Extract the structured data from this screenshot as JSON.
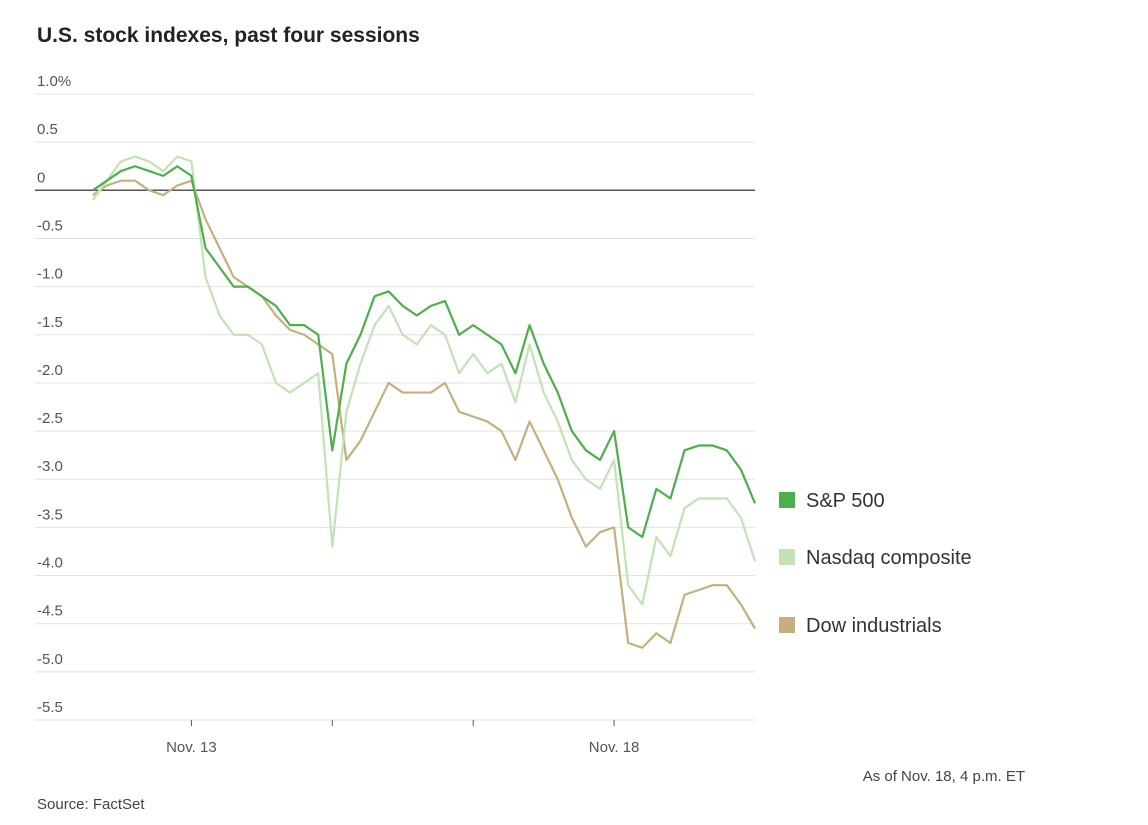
{
  "chart_data": {
    "type": "line",
    "title": "U.S. stock indexes, past four sessions",
    "source": "Source: FactSet",
    "note": "As of Nov. 18, 4 p.m. ET",
    "x": [
      0.3,
      0.4,
      0.5,
      0.6,
      0.7,
      0.8,
      0.9,
      1.0,
      1.1,
      1.2,
      1.3,
      1.4,
      1.5,
      1.6,
      1.7,
      1.8,
      1.9,
      2.0,
      2.1,
      2.2,
      2.3,
      2.4,
      2.5,
      2.6,
      2.7,
      2.8,
      2.9,
      3.0,
      3.1,
      3.2,
      3.3,
      3.4,
      3.5,
      3.6,
      3.7,
      3.8,
      3.9,
      4.0,
      4.1,
      4.2,
      4.3,
      4.4,
      4.5,
      4.6,
      4.7,
      4.8,
      4.9,
      5.0
    ],
    "xlim": [
      -0.11,
      5.0
    ],
    "xticks": [
      {
        "value": 1,
        "label": "Nov. 13"
      },
      {
        "value": 2,
        "label": null
      },
      {
        "value": 3,
        "label": null
      },
      {
        "value": 4,
        "label": "Nov. 18"
      }
    ],
    "ylim": [
      -5.5,
      1.0
    ],
    "yticks": [
      {
        "value": 1,
        "label": "1.0%"
      },
      0.5,
      0,
      -0.5,
      {
        "value": -1,
        "label": "-1.0"
      },
      -1.5,
      {
        "value": -2,
        "label": "-2.0"
      },
      -2.5,
      {
        "value": -3,
        "label": "-3.0"
      },
      -3.5,
      {
        "value": -4,
        "label": "-4.0"
      },
      -4.5,
      {
        "value": -5,
        "label": "-5.0"
      },
      -5.5
    ],
    "grid": true,
    "series": [
      {
        "name": "S&P 500",
        "color": "#4daf4a",
        "values": [
          0.0,
          0.1,
          0.2,
          0.25,
          0.2,
          0.15,
          0.25,
          0.15,
          -0.6,
          -0.8,
          -1.0,
          -1.0,
          -1.1,
          -1.2,
          -1.4,
          -1.4,
          -1.5,
          -2.7,
          -1.8,
          -1.5,
          -1.1,
          -1.05,
          -1.2,
          -1.3,
          -1.2,
          -1.15,
          -1.5,
          -1.4,
          -1.5,
          -1.6,
          -1.9,
          -1.4,
          -1.8,
          -2.1,
          -2.5,
          -2.7,
          -2.8,
          -2.5,
          -3.5,
          -3.6,
          -3.1,
          -3.2,
          -2.7,
          -2.65,
          -2.65,
          -2.7,
          -2.9,
          -3.25
        ]
      },
      {
        "name": "Nasdaq composite",
        "color": "#c2e3b4",
        "values": [
          -0.1,
          0.1,
          0.3,
          0.35,
          0.3,
          0.2,
          0.35,
          0.3,
          -0.9,
          -1.3,
          -1.5,
          -1.5,
          -1.6,
          -2.0,
          -2.1,
          -2.0,
          -1.9,
          -3.7,
          -2.3,
          -1.8,
          -1.4,
          -1.2,
          -1.5,
          -1.6,
          -1.4,
          -1.5,
          -1.9,
          -1.7,
          -1.9,
          -1.8,
          -2.2,
          -1.6,
          -2.1,
          -2.4,
          -2.8,
          -3.0,
          -3.1,
          -2.8,
          -4.1,
          -4.3,
          -3.6,
          -3.8,
          -3.3,
          -3.2,
          -3.2,
          -3.2,
          -3.4,
          -3.85
        ]
      },
      {
        "name": "Dow industrials",
        "color": "#c3b07e",
        "values": [
          -0.05,
          0.05,
          0.1,
          0.1,
          0.0,
          -0.05,
          0.05,
          0.1,
          -0.3,
          -0.6,
          -0.9,
          -1.0,
          -1.1,
          -1.3,
          -1.45,
          -1.5,
          -1.6,
          -1.7,
          -2.8,
          -2.6,
          -2.3,
          -2.0,
          -2.1,
          -2.1,
          -2.1,
          -2.0,
          -2.3,
          -2.35,
          -2.4,
          -2.5,
          -2.8,
          -2.4,
          -2.7,
          -3.0,
          -3.4,
          -3.7,
          -3.55,
          -3.5,
          -4.7,
          -4.75,
          -4.6,
          -4.7,
          -4.2,
          -4.15,
          -4.1,
          -4.1,
          -4.3,
          -4.55
        ]
      }
    ]
  }
}
